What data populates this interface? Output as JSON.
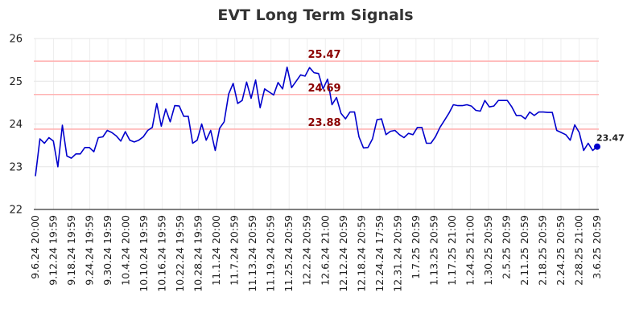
{
  "chart_data": {
    "type": "line",
    "title": "EVT Long Term Signals",
    "ylim": [
      22,
      26
    ],
    "yticks": [
      "22",
      "23",
      "24",
      "25",
      "26"
    ],
    "grid": true,
    "line_color": "#0000cc",
    "reference_line_color": "#ffb3b3",
    "x_tick_labels": [
      "9.6.24 20:00",
      "9.12.24 19:59",
      "9.18.24 19:59",
      "9.24.24 19:59",
      "9.30.24 19:59",
      "10.4.24 20:00",
      "10.10.24 19:59",
      "10.16.24 19:59",
      "10.22.24 19:59",
      "10.28.24 19:59",
      "11.1.24 20:00",
      "11.7.24 20:59",
      "11.13.24 20:59",
      "11.19.24 20:59",
      "11.25.24 20:59",
      "12.2.24 20:59",
      "12.6.24 21:00",
      "12.12.24 20:59",
      "12.18.24 20:59",
      "12.24.24 17:59",
      "12.31.24 20:59",
      "1.7.25 20:59",
      "1.13.25 20:59",
      "1.17.25 21:00",
      "1.24.25 21:00",
      "1.30.25 20:59",
      "2.5.25 20:59",
      "2.11.25 20:59",
      "2.18.25 20:59",
      "2.24.25 20:59",
      "2.28.25 21:00",
      "3.6.25 20:59"
    ],
    "reference_lines": [
      {
        "value": 25.47,
        "label": "25.47"
      },
      {
        "value": 24.69,
        "label": "24.69"
      },
      {
        "value": 23.88,
        "label": "23.88"
      }
    ],
    "last_value_label": "23.47",
    "series": [
      {
        "values": [
          22.78,
          23.65,
          23.55,
          23.68,
          23.6,
          23.0,
          23.97,
          23.25,
          23.2,
          23.3,
          23.3,
          23.45,
          23.45,
          23.35,
          23.68,
          23.7,
          23.85,
          23.8,
          23.72,
          23.6,
          23.82,
          23.62,
          23.58,
          23.62,
          23.7,
          23.85,
          23.92,
          24.48,
          23.95,
          24.35,
          24.05,
          24.43,
          24.42,
          24.18,
          24.18,
          23.55,
          23.62,
          24.0,
          23.62,
          23.85,
          23.38,
          23.9,
          24.05,
          24.7,
          24.95,
          24.48,
          24.55,
          24.98,
          24.6,
          25.03,
          24.38,
          24.82,
          24.75,
          24.68,
          24.97,
          24.82,
          25.33,
          24.85,
          25.0,
          25.15,
          25.12,
          25.32,
          25.2,
          25.18,
          24.82,
          25.05,
          24.45,
          24.62,
          24.25,
          24.12,
          24.28,
          24.28,
          23.7,
          23.44,
          23.45,
          23.65,
          24.1,
          24.12,
          23.75,
          23.83,
          23.85,
          23.75,
          23.68,
          23.78,
          23.75,
          23.92,
          23.92,
          23.55,
          23.55,
          23.7,
          23.92,
          24.08,
          24.25,
          24.45,
          24.43,
          24.43,
          24.45,
          24.42,
          24.32,
          24.3,
          24.55,
          24.4,
          24.42,
          24.55,
          24.55,
          24.55,
          24.4,
          24.2,
          24.2,
          24.12,
          24.28,
          24.2,
          24.28,
          24.28,
          24.27,
          24.27,
          23.85,
          23.8,
          23.75,
          23.62,
          23.98,
          23.8,
          23.38,
          23.55,
          23.38,
          23.47
        ]
      }
    ]
  }
}
